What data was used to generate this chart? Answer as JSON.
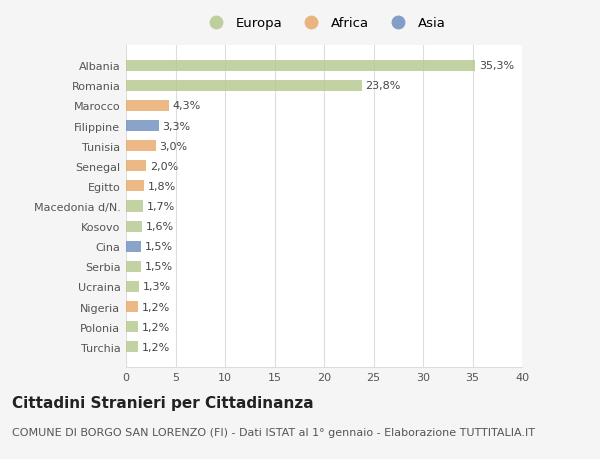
{
  "categories": [
    "Albania",
    "Romania",
    "Marocco",
    "Filippine",
    "Tunisia",
    "Senegal",
    "Egitto",
    "Macedonia d/N.",
    "Kosovo",
    "Cina",
    "Serbia",
    "Ucraina",
    "Nigeria",
    "Polonia",
    "Turchia"
  ],
  "values": [
    35.3,
    23.8,
    4.3,
    3.3,
    3.0,
    2.0,
    1.8,
    1.7,
    1.6,
    1.5,
    1.5,
    1.3,
    1.2,
    1.2,
    1.2
  ],
  "labels": [
    "35,3%",
    "23,8%",
    "4,3%",
    "3,3%",
    "3,0%",
    "2,0%",
    "1,8%",
    "1,7%",
    "1,6%",
    "1,5%",
    "1,5%",
    "1,3%",
    "1,2%",
    "1,2%",
    "1,2%"
  ],
  "continents": [
    "Europa",
    "Europa",
    "Africa",
    "Asia",
    "Africa",
    "Africa",
    "Africa",
    "Europa",
    "Europa",
    "Asia",
    "Europa",
    "Europa",
    "Africa",
    "Europa",
    "Europa"
  ],
  "colors": {
    "Europa": "#b5c98e",
    "Africa": "#e8a96a",
    "Asia": "#6f8fbe"
  },
  "legend_labels": [
    "Europa",
    "Africa",
    "Asia"
  ],
  "title": "Cittadini Stranieri per Cittadinanza",
  "subtitle": "COMUNE DI BORGO SAN LORENZO (FI) - Dati ISTAT al 1° gennaio - Elaborazione TUTTITALIA.IT",
  "xlim": [
    0,
    40
  ],
  "xticks": [
    0,
    5,
    10,
    15,
    20,
    25,
    30,
    35,
    40
  ],
  "background_color": "#f5f5f5",
  "plot_bg_color": "#ffffff",
  "grid_color": "#dddddd",
  "title_fontsize": 11,
  "subtitle_fontsize": 8,
  "label_fontsize": 8,
  "tick_fontsize": 8,
  "bar_height": 0.55
}
